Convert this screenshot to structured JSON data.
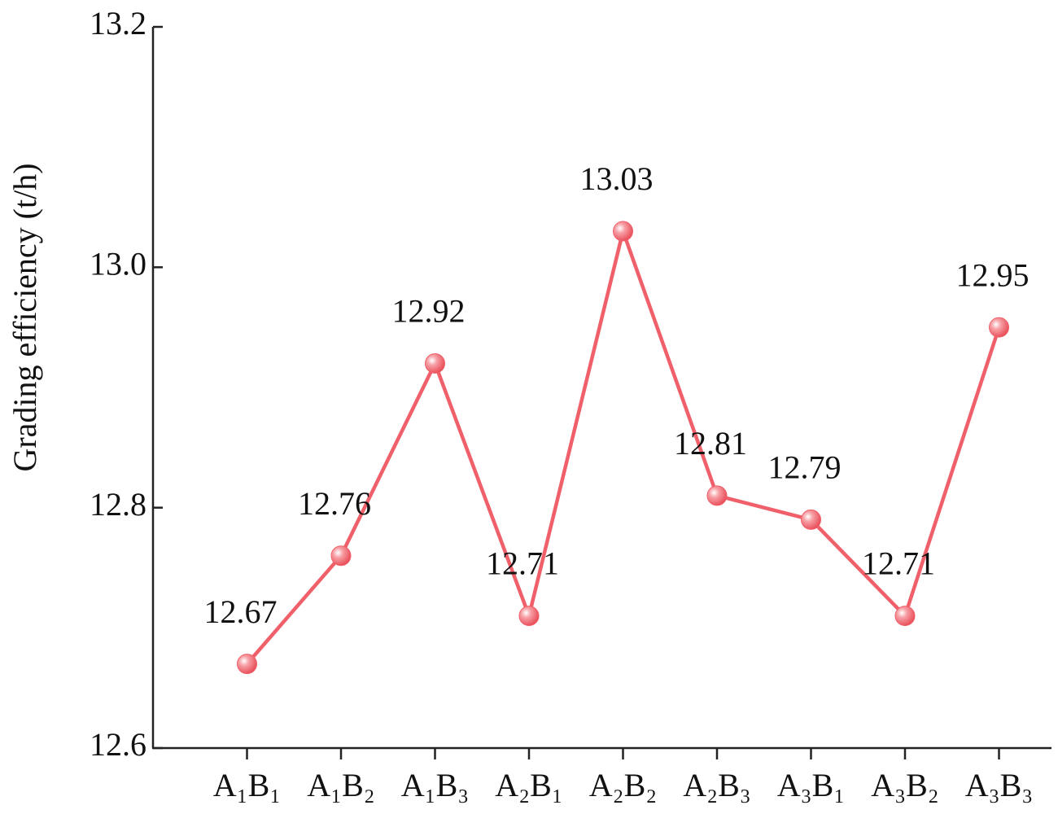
{
  "chart_data": {
    "type": "line",
    "y_label": "Grading efficiency (t/h)",
    "categories": [
      "A₁B₁",
      "A₁B₂",
      "A₁B₃",
      "A₂B₁",
      "A₂B₂",
      "A₂B₃",
      "A₃B₁",
      "A₃B₂",
      "A₃B₃"
    ],
    "values": [
      12.67,
      12.76,
      12.92,
      12.71,
      13.03,
      12.81,
      12.79,
      12.71,
      12.95
    ],
    "color": "#f0606a",
    "ylim": [
      12.6,
      13.2
    ],
    "yticks": [
      12.6,
      12.8,
      {
        "value": 13,
        "label": "13.0"
      },
      13.2
    ]
  }
}
